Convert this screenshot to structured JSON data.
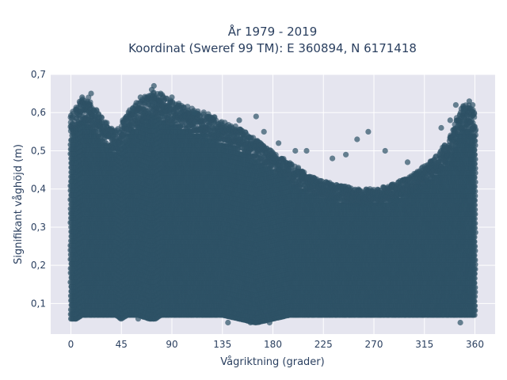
{
  "chart_data": {
    "type": "scatter",
    "title": [
      "År 1979 - 2019",
      "Koordinat (Sweref 99 TM): E 360894, N 6171418"
    ],
    "xlabel": "Vågriktning (grader)",
    "ylabel": "Signifikant våghöjd (m)",
    "xlim": [
      -18,
      378
    ],
    "ylim": [
      0.02,
      0.7
    ],
    "xticks": [
      0,
      45,
      90,
      135,
      180,
      225,
      270,
      315,
      360
    ],
    "xtick_labels": [
      "0",
      "45",
      "90",
      "135",
      "180",
      "225",
      "270",
      "315",
      "360"
    ],
    "yticks": [
      0.1,
      0.2,
      0.3,
      0.4,
      0.5,
      0.6,
      0.7
    ],
    "ytick_labels": [
      "0,1",
      "0,2",
      "0,3",
      "0,4",
      "0,5",
      "0,6",
      "0,7"
    ],
    "grid": true,
    "colors": {
      "plot_bg": "#e5e5ef",
      "grid": "#ffffff",
      "marker": "#2e5266"
    },
    "envelope": {
      "x": [
        0,
        5,
        10,
        15,
        20,
        30,
        40,
        45,
        50,
        60,
        70,
        75,
        80,
        90,
        100,
        110,
        120,
        135,
        150,
        165,
        180,
        195,
        210,
        225,
        240,
        255,
        270,
        285,
        300,
        315,
        330,
        340,
        345,
        350,
        355,
        360
      ],
      "ymax": [
        0.6,
        0.62,
        0.64,
        0.64,
        0.62,
        0.58,
        0.55,
        0.57,
        0.6,
        0.63,
        0.65,
        0.66,
        0.65,
        0.63,
        0.62,
        0.61,
        0.6,
        0.58,
        0.56,
        0.53,
        0.5,
        0.47,
        0.44,
        0.42,
        0.41,
        0.4,
        0.4,
        0.41,
        0.43,
        0.46,
        0.5,
        0.55,
        0.6,
        0.62,
        0.62,
        0.6
      ],
      "ymin": [
        0.06,
        0.06,
        0.07,
        0.07,
        0.07,
        0.07,
        0.07,
        0.06,
        0.07,
        0.07,
        0.06,
        0.06,
        0.07,
        0.07,
        0.07,
        0.07,
        0.07,
        0.07,
        0.06,
        0.05,
        0.06,
        0.07,
        0.07,
        0.07,
        0.07,
        0.07,
        0.07,
        0.07,
        0.07,
        0.07,
        0.07,
        0.07,
        0.07,
        0.07,
        0.07,
        0.07
      ]
    },
    "outliers": [
      {
        "x": 10,
        "y": 0.64
      },
      {
        "x": 18,
        "y": 0.65
      },
      {
        "x": 55,
        "y": 0.61
      },
      {
        "x": 62,
        "y": 0.64
      },
      {
        "x": 72,
        "y": 0.66
      },
      {
        "x": 74,
        "y": 0.67
      },
      {
        "x": 80,
        "y": 0.65
      },
      {
        "x": 90,
        "y": 0.64
      },
      {
        "x": 110,
        "y": 0.6
      },
      {
        "x": 150,
        "y": 0.58
      },
      {
        "x": 165,
        "y": 0.59
      },
      {
        "x": 172,
        "y": 0.55
      },
      {
        "x": 185,
        "y": 0.52
      },
      {
        "x": 200,
        "y": 0.5
      },
      {
        "x": 210,
        "y": 0.5
      },
      {
        "x": 233,
        "y": 0.48
      },
      {
        "x": 245,
        "y": 0.49
      },
      {
        "x": 255,
        "y": 0.53
      },
      {
        "x": 265,
        "y": 0.55
      },
      {
        "x": 280,
        "y": 0.5
      },
      {
        "x": 300,
        "y": 0.47
      },
      {
        "x": 330,
        "y": 0.56
      },
      {
        "x": 338,
        "y": 0.58
      },
      {
        "x": 343,
        "y": 0.62
      },
      {
        "x": 350,
        "y": 0.61
      },
      {
        "x": 355,
        "y": 0.63
      },
      {
        "x": 358,
        "y": 0.62
      },
      {
        "x": 160,
        "y": 0.05
      },
      {
        "x": 177,
        "y": 0.05
      },
      {
        "x": 347,
        "y": 0.05
      },
      {
        "x": 140,
        "y": 0.05
      },
      {
        "x": 60,
        "y": 0.06
      }
    ]
  }
}
